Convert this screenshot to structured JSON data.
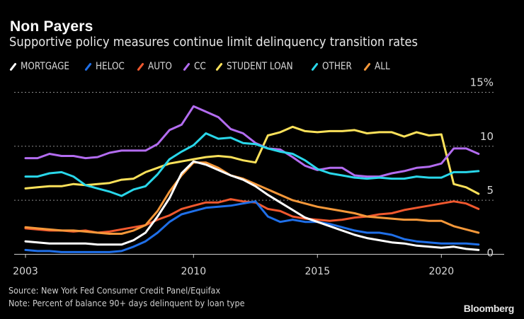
{
  "header": {
    "title": "Non Payers",
    "subtitle": "Supportive policy measures continue limit delinquency transition rates"
  },
  "footer": {
    "source": "Source: New York Fed Consumer Credit Panel/Equifax",
    "note": "Note: Percent of balance 90+ days delinquent by loan type",
    "brand": "Bloomberg"
  },
  "chart_data": {
    "type": "line",
    "title": "Non Payers",
    "subtitle": "Supportive policy measures continue limit delinquency transition rates",
    "xlabel": "",
    "ylabel": "",
    "x_ticks": [
      2003,
      2010,
      2015,
      2020
    ],
    "y_ticks": [
      0,
      5,
      10,
      15
    ],
    "y_tick_labels": [
      "0",
      "5",
      "10",
      "15%"
    ],
    "ylim": [
      0,
      15
    ],
    "xlim": [
      2003,
      2021.5
    ],
    "grid": true,
    "legend_position": "top-left",
    "x": [
      2003.0,
      2003.5,
      2004.0,
      2004.5,
      2005.0,
      2005.5,
      2006.0,
      2006.5,
      2007.0,
      2007.5,
      2008.0,
      2008.5,
      2009.0,
      2009.5,
      2010.0,
      2010.5,
      2011.0,
      2011.5,
      2012.0,
      2012.5,
      2013.0,
      2013.5,
      2014.0,
      2014.5,
      2015.0,
      2015.5,
      2016.0,
      2016.5,
      2017.0,
      2017.5,
      2018.0,
      2018.5,
      2019.0,
      2019.5,
      2020.0,
      2020.5,
      2021.0,
      2021.5
    ],
    "series": [
      {
        "name": "MORTGAGE",
        "color": "#ffffff",
        "values": [
          1.2,
          1.1,
          1.0,
          1.0,
          1.0,
          1.0,
          0.9,
          0.9,
          0.9,
          1.3,
          2.0,
          3.5,
          5.2,
          7.5,
          8.6,
          8.3,
          7.8,
          7.3,
          6.9,
          6.3,
          5.5,
          4.8,
          4.1,
          3.4,
          3.0,
          2.6,
          2.2,
          1.8,
          1.5,
          1.3,
          1.1,
          1.0,
          0.8,
          0.7,
          0.6,
          0.7,
          0.5,
          0.4
        ]
      },
      {
        "name": "HELOC",
        "color": "#1f6fe8",
        "values": [
          0.4,
          0.3,
          0.3,
          0.2,
          0.2,
          0.2,
          0.2,
          0.2,
          0.3,
          0.7,
          1.2,
          2.0,
          3.0,
          3.7,
          4.0,
          4.3,
          4.4,
          4.5,
          4.7,
          4.9,
          3.5,
          3.0,
          3.2,
          3.0,
          3.0,
          2.8,
          2.5,
          2.2,
          2.0,
          2.0,
          1.8,
          1.4,
          1.2,
          1.1,
          1.0,
          1.0,
          1.0,
          0.9
        ]
      },
      {
        "name": "AUTO",
        "color": "#f0582e",
        "values": [
          2.4,
          2.3,
          2.2,
          2.2,
          2.1,
          2.2,
          2.0,
          2.1,
          2.3,
          2.5,
          2.7,
          3.2,
          3.6,
          4.2,
          4.5,
          4.8,
          4.8,
          5.1,
          4.9,
          4.8,
          4.2,
          4.0,
          3.5,
          3.3,
          3.2,
          3.1,
          3.2,
          3.4,
          3.5,
          3.7,
          3.8,
          4.1,
          4.3,
          4.5,
          4.7,
          4.9,
          4.7,
          4.2
        ]
      },
      {
        "name": "CC",
        "color": "#b36cf0",
        "values": [
          8.9,
          8.9,
          9.3,
          9.1,
          9.1,
          8.9,
          9.0,
          9.4,
          9.6,
          9.6,
          9.6,
          10.2,
          11.5,
          12.0,
          13.7,
          13.2,
          12.7,
          11.6,
          11.2,
          10.3,
          9.8,
          9.7,
          9.0,
          8.2,
          7.8,
          8.0,
          8.0,
          7.3,
          7.2,
          7.2,
          7.5,
          7.7,
          8.0,
          8.1,
          8.4,
          9.8,
          9.8,
          9.3
        ]
      },
      {
        "name": "STUDENT LOAN",
        "color": "#fbe15a",
        "values": [
          6.1,
          6.2,
          6.3,
          6.3,
          6.5,
          6.4,
          6.5,
          6.6,
          6.9,
          7.0,
          7.6,
          8.0,
          8.4,
          8.6,
          8.8,
          9.0,
          9.1,
          9.0,
          8.7,
          8.5,
          11.0,
          11.3,
          11.8,
          11.4,
          11.3,
          11.4,
          11.4,
          11.5,
          11.2,
          11.3,
          11.3,
          10.9,
          11.3,
          11.0,
          11.1,
          6.5,
          6.2,
          5.6
        ]
      },
      {
        "name": "OTHER",
        "color": "#29d7ea",
        "values": [
          7.2,
          7.2,
          7.5,
          7.6,
          7.2,
          6.4,
          6.1,
          5.8,
          5.4,
          6.0,
          6.3,
          7.4,
          8.8,
          9.5,
          10.1,
          11.2,
          10.7,
          10.8,
          10.3,
          10.2,
          9.8,
          9.5,
          9.3,
          8.7,
          7.9,
          7.5,
          7.3,
          7.1,
          7.0,
          7.1,
          7.0,
          7.0,
          7.2,
          7.1,
          7.1,
          7.6,
          7.6,
          7.7
        ]
      },
      {
        "name": "ALL",
        "color": "#f5983a",
        "values": [
          2.5,
          2.4,
          2.3,
          2.2,
          2.2,
          2.1,
          2.0,
          1.9,
          1.9,
          2.2,
          2.7,
          4.0,
          5.8,
          7.3,
          8.5,
          8.5,
          8.0,
          7.3,
          7.0,
          6.5,
          6.0,
          5.5,
          5.0,
          4.7,
          4.4,
          4.2,
          4.0,
          3.8,
          3.5,
          3.4,
          3.3,
          3.2,
          3.2,
          3.1,
          3.1,
          2.6,
          2.3,
          2.0
        ]
      }
    ]
  }
}
